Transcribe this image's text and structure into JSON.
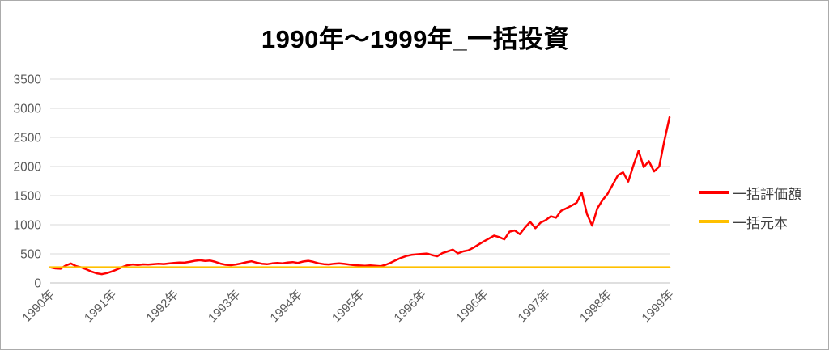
{
  "window": {
    "background": "#FFFFFF",
    "border_color": "#ABABAB"
  },
  "chart_data": {
    "type": "line",
    "title": "1990年～1999年_一括投資",
    "xlabel": "",
    "ylabel": "",
    "ylim": [
      0,
      3500
    ],
    "y_ticks": [
      0,
      500,
      1000,
      1500,
      2000,
      2500,
      3000,
      3500
    ],
    "x_tick_labels": [
      "1990年",
      "1991年",
      "1992年",
      "1993年",
      "1994年",
      "1995年",
      "1996年",
      "1996年",
      "1997年",
      "1998年",
      "1999年"
    ],
    "grid": "horizontal",
    "legend_position": "right",
    "colors": {
      "gridline": "#D9D9D9",
      "axis_line": "#BFBFBF",
      "tick_label": "#595959",
      "legend_text": "#404040",
      "title_text": "#000000"
    },
    "series": [
      {
        "name": "一括評価額",
        "color": "#FF0000",
        "line_width": 2.5,
        "values": [
          268,
          250,
          245,
          300,
          335,
          290,
          268,
          235,
          196,
          165,
          152,
          170,
          198,
          235,
          275,
          305,
          318,
          310,
          320,
          315,
          322,
          330,
          325,
          335,
          345,
          352,
          348,
          362,
          380,
          390,
          378,
          385,
          362,
          332,
          312,
          305,
          318,
          335,
          355,
          372,
          348,
          330,
          322,
          336,
          345,
          338,
          350,
          358,
          345,
          368,
          380,
          362,
          338,
          324,
          318,
          330,
          336,
          328,
          315,
          306,
          300,
          295,
          303,
          296,
          288,
          312,
          348,
          392,
          432,
          462,
          482,
          492,
          498,
          505,
          478,
          458,
          512,
          542,
          572,
          508,
          542,
          560,
          605,
          660,
          712,
          762,
          812,
          788,
          748,
          880,
          902,
          838,
          952,
          1048,
          940,
          1035,
          1078,
          1145,
          1120,
          1240,
          1282,
          1328,
          1378,
          1552,
          1185,
          985,
          1280,
          1420,
          1530,
          1690,
          1850,
          1900,
          1740,
          2020,
          2270,
          1990,
          2090,
          1915,
          2000,
          2440,
          2845
        ]
      },
      {
        "name": "一括元本",
        "color": "#FFC000",
        "line_width": 2.5,
        "values": [
          270,
          270
        ]
      }
    ]
  }
}
